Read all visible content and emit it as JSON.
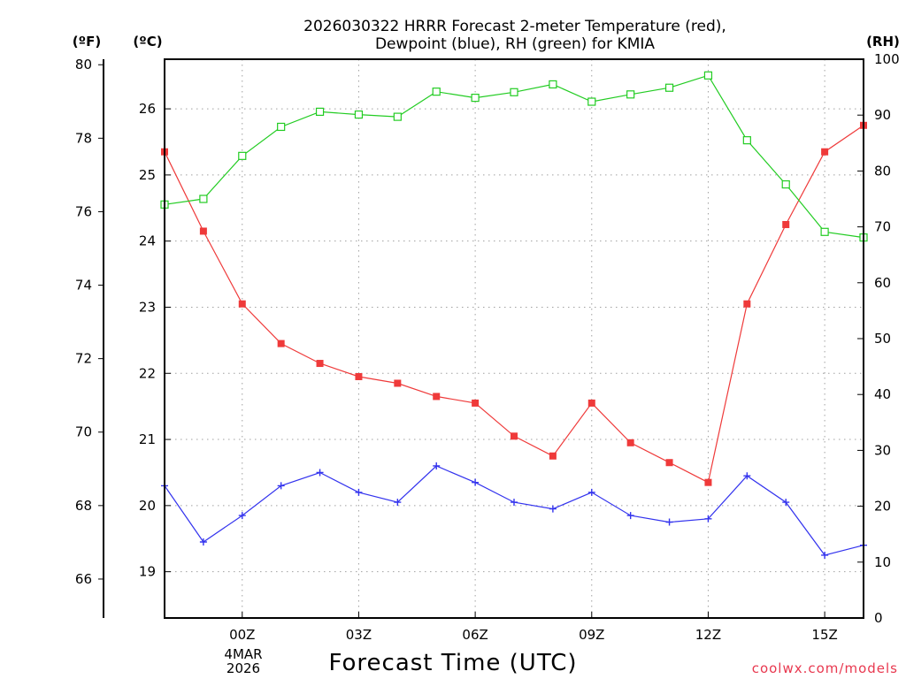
{
  "chart_data": {
    "type": "line",
    "title_lines": [
      "2026030322 HRRR Forecast 2-meter Temperature (red),",
      "Dewpoint (blue), RH (green) for KMIA"
    ],
    "xlabel": "Forecast Time (UTC)",
    "credit": "coolwx.com/models",
    "unit_labels": {
      "fahrenheit": "(ºF)",
      "celsius": "(ºC)",
      "rh": "(RH)"
    },
    "x_tick_labels": [
      "00Z",
      "03Z",
      "06Z",
      "09Z",
      "12Z",
      "15Z"
    ],
    "x_date_labels": [
      "4MAR",
      "2026"
    ],
    "x_range_hours": [
      -2,
      16
    ],
    "x_tick_hours": [
      0,
      3,
      6,
      9,
      12,
      15
    ],
    "left_f_ticks": [
      "66",
      "68",
      "70",
      "72",
      "74",
      "76",
      "78",
      "80"
    ],
    "left_c_ticks": [
      "19",
      "20",
      "21",
      "22",
      "23",
      "24",
      "25",
      "26"
    ],
    "right_rh_ticks": [
      "0",
      "10",
      "20",
      "30",
      "40",
      "50",
      "60",
      "70",
      "80",
      "90",
      "100"
    ],
    "ylim_celsius": [
      18.3,
      26.75
    ],
    "ylim_rh": [
      0,
      100
    ],
    "grid": true,
    "x_hours": [
      -2,
      -1,
      0,
      1,
      2,
      3,
      4,
      5,
      6,
      7,
      8,
      9,
      10,
      11,
      12,
      13,
      14,
      15,
      16
    ],
    "series": [
      {
        "name": "Temperature",
        "color": "#ef3a3a",
        "marker": "filled-square",
        "axis": "celsius",
        "values": [
          25.35,
          24.15,
          23.05,
          22.45,
          22.15,
          21.95,
          21.85,
          21.65,
          21.55,
          21.05,
          20.75,
          21.55,
          20.95,
          20.65,
          20.35,
          23.05,
          24.25,
          25.35,
          25.75
        ]
      },
      {
        "name": "Dewpoint",
        "color": "#3333ee",
        "marker": "plus",
        "axis": "celsius",
        "values": [
          20.3,
          19.45,
          19.85,
          20.3,
          20.5,
          20.2,
          20.05,
          20.6,
          20.35,
          20.05,
          19.95,
          20.2,
          19.85,
          19.75,
          19.8,
          20.45,
          20.05,
          19.25,
          19.4
        ]
      },
      {
        "name": "RH",
        "color": "#22cc22",
        "marker": "open-square",
        "axis": "rh",
        "values": [
          74,
          75,
          82.7,
          87.9,
          90.6,
          90.1,
          89.7,
          94.2,
          93.1,
          94.1,
          95.5,
          92.4,
          93.7,
          94.9,
          97.1,
          85.5,
          77.6,
          69.1,
          68.1
        ]
      }
    ]
  }
}
